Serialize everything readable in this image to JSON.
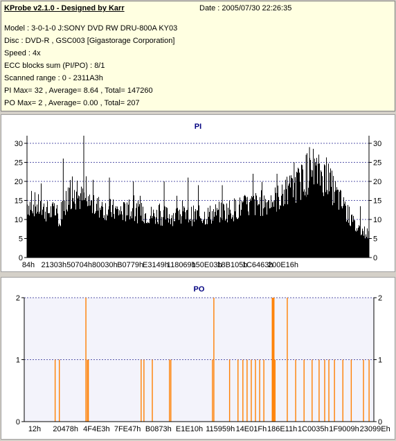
{
  "info": {
    "title": "KProbe v2.1.0 - Designed by Karr",
    "date": "Date : 2005/07/30 22:26:35",
    "lines": [
      "Model : 3-0-1-0 J:SONY    DVD RW DRU-800A  KY03",
      "Disc : DVD-R , GSC003 [Gigastorage Corporation]",
      "Speed : 4x",
      "ECC blocks sum (PI/PO) : 8/1",
      "Scanned range : 0 - 2311A3h",
      "PI Max= 32 , Average= 8.64 , Total= 147260",
      "PO Max= 2 , Average= 0.00 , Total= 207"
    ]
  },
  "colors": {
    "pi_bar": "#000000",
    "po_bar": "#ff7f00",
    "plot_bg": "#ffffff",
    "po_plot_bg": "#f3f3fb",
    "grid": "#5555aa",
    "title": "#000080"
  },
  "chart_data": [
    {
      "type": "bar",
      "title": "PI",
      "ylim": [
        0,
        32
      ],
      "yticks": [
        0,
        5,
        10,
        15,
        20,
        25,
        30
      ],
      "x_range": [
        0,
        2363811
      ],
      "xtick_labels": [
        "84h",
        "21303h",
        "50704h",
        "80030h",
        "B0779h",
        "E3149h",
        "118069h",
        "150E03h",
        "18B105h",
        "1C6463h",
        "200E16h"
      ],
      "profile": [
        [
          0,
          14
        ],
        [
          2,
          14
        ],
        [
          4,
          13
        ],
        [
          6,
          12
        ],
        [
          8,
          12
        ],
        [
          9,
          11
        ],
        [
          9.5,
          8
        ],
        [
          10,
          13
        ],
        [
          12,
          16
        ],
        [
          15,
          16
        ],
        [
          18,
          14
        ],
        [
          22,
          13
        ],
        [
          27,
          12
        ],
        [
          32,
          12
        ],
        [
          37,
          11
        ],
        [
          42,
          11
        ],
        [
          47,
          11
        ],
        [
          52,
          11
        ],
        [
          57,
          12
        ],
        [
          62,
          13
        ],
        [
          67,
          14
        ],
        [
          72,
          15
        ],
        [
          76,
          17
        ],
        [
          80,
          20
        ],
        [
          83,
          22
        ],
        [
          86,
          22
        ],
        [
          88,
          20
        ],
        [
          90,
          17
        ],
        [
          92,
          14
        ],
        [
          94,
          11
        ],
        [
          96,
          8
        ],
        [
          98,
          7
        ],
        [
          100,
          6
        ]
      ],
      "spikes": [
        [
          10.5,
          26
        ],
        [
          16.5,
          32
        ],
        [
          24,
          21
        ],
        [
          31,
          20
        ],
        [
          40,
          20
        ],
        [
          47,
          21
        ],
        [
          50,
          19
        ],
        [
          57,
          19
        ],
        [
          66,
          22
        ],
        [
          73,
          22
        ],
        [
          78,
          25
        ],
        [
          81.5,
          27
        ],
        [
          82.5,
          29
        ],
        [
          84,
          26
        ]
      ],
      "grid": true
    },
    {
      "type": "bar",
      "title": "PO",
      "ylim": [
        0,
        2
      ],
      "yticks": [
        0,
        1,
        2
      ],
      "x_range": [
        0,
        2363811
      ],
      "xtick_labels": [
        "12h",
        "20478h",
        "4F4E3h",
        "7FE47h",
        "B0873h",
        "E1E10h",
        "115959h",
        "14E01Fh",
        "186E11h",
        "1C0035h",
        "1F9009h",
        "23099Eh"
      ],
      "bars": [
        [
          8.7,
          1
        ],
        [
          9.9,
          1
        ],
        [
          17.5,
          2
        ],
        [
          17.9,
          1
        ],
        [
          18.2,
          1
        ],
        [
          33.3,
          1
        ],
        [
          34.1,
          1
        ],
        [
          36.5,
          1
        ],
        [
          41.4,
          1
        ],
        [
          41.8,
          1
        ],
        [
          53.7,
          1
        ],
        [
          54.1,
          2
        ],
        [
          58.6,
          1
        ],
        [
          61.0,
          1
        ],
        [
          62.4,
          1
        ],
        [
          63.6,
          1
        ],
        [
          64.8,
          1
        ],
        [
          66.0,
          1
        ],
        [
          67.2,
          1
        ],
        [
          68.4,
          1
        ],
        [
          70.8,
          2
        ],
        [
          71.0,
          2
        ],
        [
          71.3,
          2
        ],
        [
          71.6,
          1
        ],
        [
          75.1,
          2
        ],
        [
          77.5,
          1
        ],
        [
          79.9,
          1
        ],
        [
          82.2,
          1
        ],
        [
          84.2,
          1
        ],
        [
          85.8,
          1
        ],
        [
          87.0,
          1
        ],
        [
          88.6,
          1
        ],
        [
          91.0,
          1
        ],
        [
          93.4,
          1
        ],
        [
          96.9,
          1
        ],
        [
          98.5,
          1
        ]
      ],
      "grid": true
    }
  ]
}
